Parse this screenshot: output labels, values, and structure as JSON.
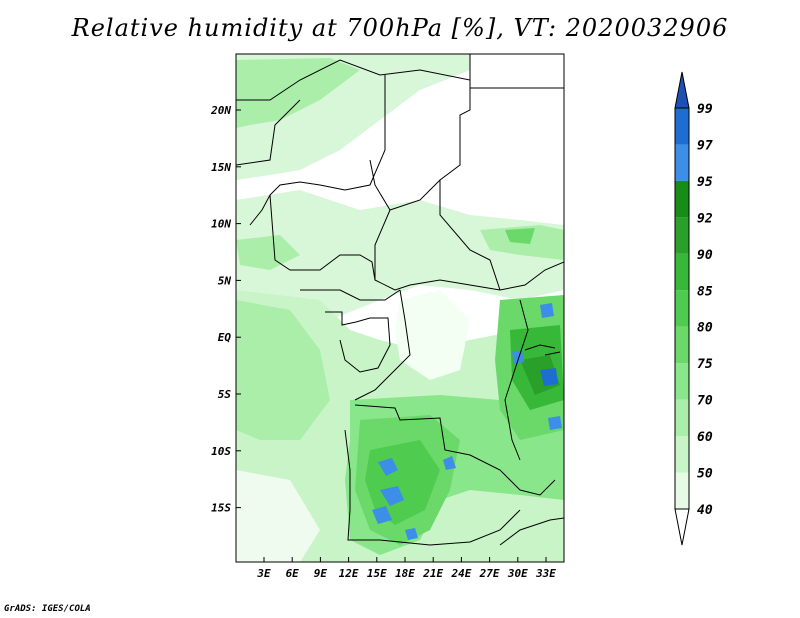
{
  "title": "Relative humidity at 700hPa [%], VT: 2020032906",
  "credit": "GrADS: IGES/COLA",
  "lat_labels": [
    "20N",
    "15N",
    "10N",
    "5N",
    "EQ",
    "5S",
    "10S",
    "15S"
  ],
  "lon_labels": [
    "3E",
    "6E",
    "9E",
    "12E",
    "15E",
    "18E",
    "21E",
    "24E",
    "27E",
    "30E",
    "33E"
  ],
  "colorbar": {
    "levels": [
      "40",
      "50",
      "60",
      "70",
      "75",
      "80",
      "85",
      "90",
      "92",
      "95",
      "97",
      "99"
    ],
    "colors": [
      "#ffffff",
      "#e6fae6",
      "#c8f4c8",
      "#aaeeaa",
      "#8ae68a",
      "#6ad96a",
      "#4fcc4f",
      "#38b838",
      "#2aa02a",
      "#178c17",
      "#3c8ee6",
      "#1e6ed2",
      "#1e50b4"
    ]
  }
}
